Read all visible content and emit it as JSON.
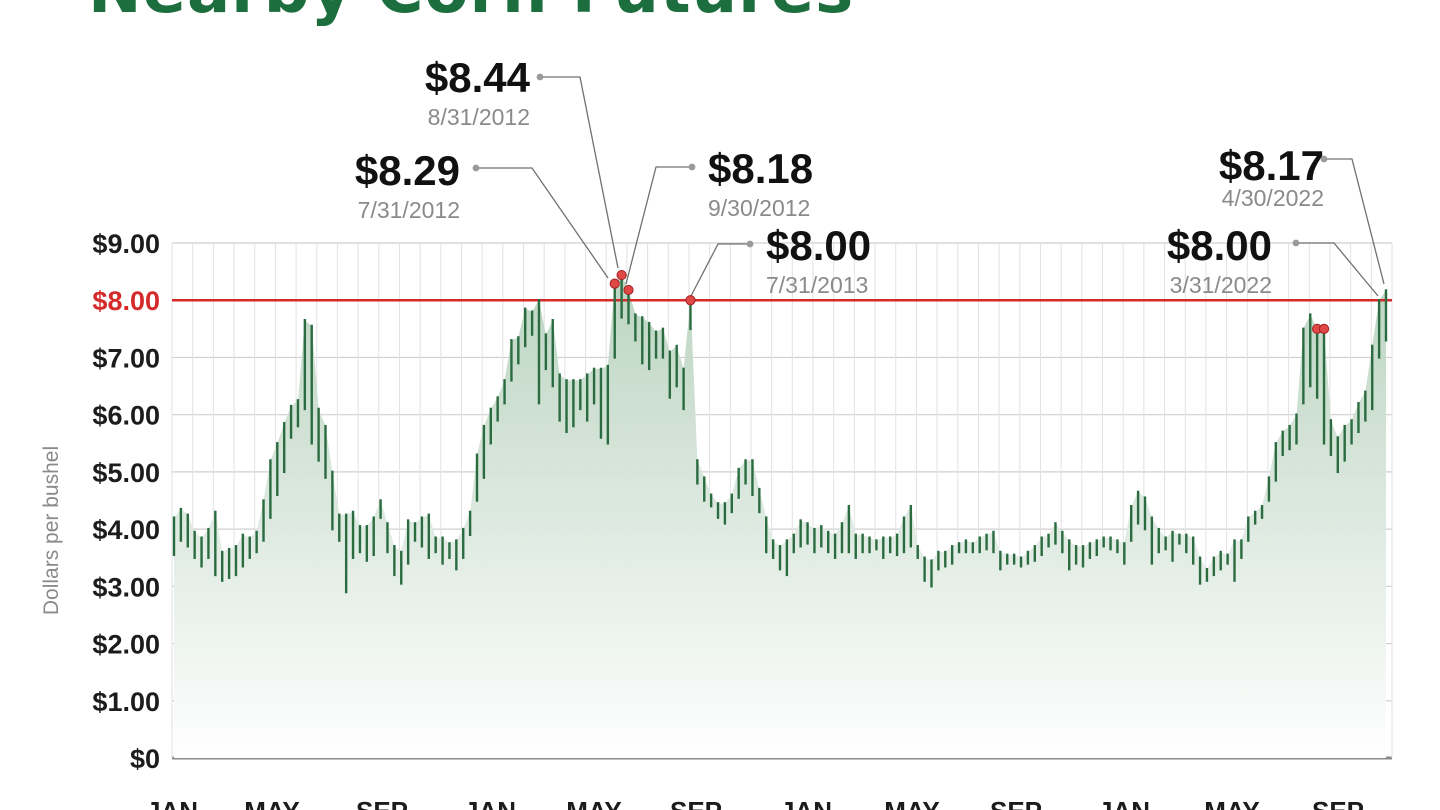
{
  "chart_data": {
    "type": "line",
    "title": "Nearby Corn Futures",
    "ylabel": "Dollars per bushel",
    "ylim": [
      0,
      9
    ],
    "yticks": [
      {
        "value": 0,
        "label": "$0"
      },
      {
        "value": 1,
        "label": "$1.00"
      },
      {
        "value": 2,
        "label": "$2.00"
      },
      {
        "value": 3,
        "label": "$3.00"
      },
      {
        "value": 4,
        "label": "$4.00"
      },
      {
        "value": 5,
        "label": "$5.00"
      },
      {
        "value": 6,
        "label": "$6.00"
      },
      {
        "value": 7,
        "label": "$7.00"
      },
      {
        "value": 8,
        "label": "$8.00"
      },
      {
        "value": 9,
        "label": "$9.00"
      }
    ],
    "xticks": [
      "JAN",
      "MAY",
      "SEP",
      "JAN",
      "MAY",
      "SEP",
      "JAN",
      "MAY",
      "SEP",
      "JAN",
      "MAY",
      "SEP"
    ],
    "reference_line": {
      "value": 8.0,
      "label": "$8.00",
      "color": "#d42a2a"
    },
    "colors": {
      "bars": "#2a6b40",
      "area": "#cfe0d3",
      "grid": "#cfcfcf",
      "annotation_dot": "#e04848",
      "title": "#1d6e3f"
    },
    "series": [
      {
        "ranges": [
          [
            3.55,
            4.2
          ],
          [
            3.8,
            4.35
          ],
          [
            3.7,
            4.25
          ],
          [
            3.5,
            3.95
          ],
          [
            3.35,
            3.85
          ],
          [
            3.5,
            4.0
          ],
          [
            3.2,
            4.3
          ],
          [
            3.1,
            3.6
          ],
          [
            3.15,
            3.65
          ],
          [
            3.2,
            3.7
          ],
          [
            3.35,
            3.9
          ],
          [
            3.5,
            3.85
          ],
          [
            3.6,
            3.95
          ],
          [
            3.8,
            4.5
          ],
          [
            4.2,
            5.2
          ],
          [
            4.6,
            5.5
          ],
          [
            5.0,
            5.85
          ],
          [
            5.6,
            6.15
          ],
          [
            5.8,
            6.25
          ],
          [
            6.1,
            7.65
          ],
          [
            5.5,
            7.55
          ],
          [
            5.2,
            6.1
          ],
          [
            4.9,
            5.8
          ],
          [
            4.0,
            5.0
          ],
          [
            3.8,
            4.25
          ],
          [
            2.9,
            4.25
          ],
          [
            3.5,
            4.3
          ],
          [
            3.6,
            4.05
          ],
          [
            3.45,
            4.05
          ],
          [
            3.55,
            4.2
          ],
          [
            4.2,
            4.5
          ],
          [
            3.6,
            4.1
          ],
          [
            3.2,
            3.7
          ],
          [
            3.05,
            3.6
          ],
          [
            3.4,
            4.15
          ],
          [
            3.8,
            4.1
          ],
          [
            3.7,
            4.2
          ],
          [
            3.5,
            4.25
          ],
          [
            3.6,
            3.85
          ],
          [
            3.4,
            3.85
          ],
          [
            3.5,
            3.75
          ],
          [
            3.3,
            3.8
          ],
          [
            3.5,
            4.0
          ],
          [
            3.9,
            4.3
          ],
          [
            4.5,
            5.3
          ],
          [
            4.9,
            5.8
          ],
          [
            5.5,
            6.1
          ],
          [
            5.9,
            6.3
          ],
          [
            6.2,
            6.6
          ],
          [
            6.6,
            7.3
          ],
          [
            6.9,
            7.35
          ],
          [
            7.2,
            7.85
          ],
          [
            7.4,
            7.8
          ],
          [
            6.2,
            8.0
          ],
          [
            6.8,
            7.4
          ],
          [
            6.5,
            7.65
          ],
          [
            5.9,
            6.7
          ],
          [
            5.7,
            6.6
          ],
          [
            5.8,
            6.6
          ],
          [
            6.1,
            6.6
          ],
          [
            5.9,
            6.7
          ],
          [
            6.2,
            6.8
          ],
          [
            5.6,
            6.8
          ],
          [
            5.5,
            6.85
          ],
          [
            7.0,
            8.29
          ],
          [
            7.7,
            8.44
          ],
          [
            7.6,
            8.18
          ],
          [
            7.3,
            7.75
          ],
          [
            6.9,
            7.7
          ],
          [
            6.8,
            7.6
          ],
          [
            7.0,
            7.45
          ],
          [
            7.0,
            7.5
          ],
          [
            6.3,
            7.1
          ],
          [
            6.5,
            7.2
          ],
          [
            6.1,
            6.8
          ],
          [
            7.5,
            8.0
          ],
          [
            4.8,
            5.2
          ],
          [
            4.5,
            4.9
          ],
          [
            4.4,
            4.6
          ],
          [
            4.2,
            4.45
          ],
          [
            4.1,
            4.45
          ],
          [
            4.3,
            4.6
          ],
          [
            4.55,
            5.05
          ],
          [
            4.8,
            5.2
          ],
          [
            4.6,
            5.2
          ],
          [
            4.3,
            4.7
          ],
          [
            3.6,
            4.2
          ],
          [
            3.5,
            3.8
          ],
          [
            3.3,
            3.7
          ],
          [
            3.2,
            3.8
          ],
          [
            3.6,
            3.9
          ],
          [
            3.7,
            4.15
          ],
          [
            3.75,
            4.1
          ],
          [
            3.6,
            4.0
          ],
          [
            3.7,
            4.05
          ],
          [
            3.6,
            3.95
          ],
          [
            3.5,
            3.9
          ],
          [
            3.6,
            4.1
          ],
          [
            3.6,
            4.4
          ],
          [
            3.5,
            3.9
          ],
          [
            3.6,
            3.9
          ],
          [
            3.6,
            3.85
          ],
          [
            3.65,
            3.8
          ],
          [
            3.5,
            3.85
          ],
          [
            3.6,
            3.85
          ],
          [
            3.55,
            3.9
          ],
          [
            3.6,
            4.2
          ],
          [
            3.7,
            4.4
          ],
          [
            3.5,
            3.7
          ],
          [
            3.1,
            3.5
          ],
          [
            3.0,
            3.45
          ],
          [
            3.3,
            3.6
          ],
          [
            3.35,
            3.6
          ],
          [
            3.4,
            3.7
          ],
          [
            3.6,
            3.75
          ],
          [
            3.6,
            3.8
          ],
          [
            3.6,
            3.75
          ],
          [
            3.6,
            3.85
          ],
          [
            3.65,
            3.9
          ],
          [
            3.6,
            3.95
          ],
          [
            3.3,
            3.6
          ],
          [
            3.4,
            3.55
          ],
          [
            3.4,
            3.55
          ],
          [
            3.35,
            3.5
          ],
          [
            3.4,
            3.6
          ],
          [
            3.45,
            3.7
          ],
          [
            3.55,
            3.85
          ],
          [
            3.7,
            3.9
          ],
          [
            3.75,
            4.1
          ],
          [
            3.6,
            3.95
          ],
          [
            3.3,
            3.8
          ],
          [
            3.4,
            3.7
          ],
          [
            3.35,
            3.7
          ],
          [
            3.5,
            3.75
          ],
          [
            3.55,
            3.8
          ],
          [
            3.7,
            3.85
          ],
          [
            3.65,
            3.85
          ],
          [
            3.6,
            3.8
          ],
          [
            3.4,
            3.75
          ],
          [
            3.8,
            4.4
          ],
          [
            4.1,
            4.65
          ],
          [
            4.0,
            4.55
          ],
          [
            3.4,
            4.2
          ],
          [
            3.6,
            4.0
          ],
          [
            3.65,
            3.85
          ],
          [
            3.45,
            3.95
          ],
          [
            3.75,
            3.9
          ],
          [
            3.6,
            3.9
          ],
          [
            3.4,
            3.85
          ],
          [
            3.05,
            3.5
          ],
          [
            3.1,
            3.3
          ],
          [
            3.2,
            3.5
          ],
          [
            3.3,
            3.6
          ],
          [
            3.4,
            3.55
          ],
          [
            3.1,
            3.8
          ],
          [
            3.5,
            3.8
          ],
          [
            3.8,
            4.2
          ],
          [
            4.1,
            4.3
          ],
          [
            4.2,
            4.4
          ],
          [
            4.5,
            4.9
          ],
          [
            4.85,
            5.5
          ],
          [
            5.3,
            5.7
          ],
          [
            5.4,
            5.8
          ],
          [
            5.5,
            6.0
          ],
          [
            6.2,
            7.5
          ],
          [
            6.5,
            7.75
          ],
          [
            6.3,
            7.5
          ],
          [
            5.5,
            7.5
          ],
          [
            5.3,
            5.9
          ],
          [
            5.0,
            5.6
          ],
          [
            5.2,
            5.8
          ],
          [
            5.5,
            5.9
          ],
          [
            5.7,
            6.2
          ],
          [
            5.9,
            6.4
          ],
          [
            6.1,
            7.2
          ],
          [
            7.0,
            8.0
          ],
          [
            7.3,
            8.17
          ]
        ]
      }
    ],
    "annotations": [
      {
        "value": "$8.29",
        "date": "7/31/2012"
      },
      {
        "value": "$8.44",
        "date": "8/31/2012"
      },
      {
        "value": "$8.18",
        "date": "9/30/2012"
      },
      {
        "value": "$8.00",
        "date": "7/31/2013"
      },
      {
        "value": "$8.00",
        "date": "3/31/2022"
      },
      {
        "value": "$8.17",
        "date": "4/30/2022"
      }
    ]
  }
}
